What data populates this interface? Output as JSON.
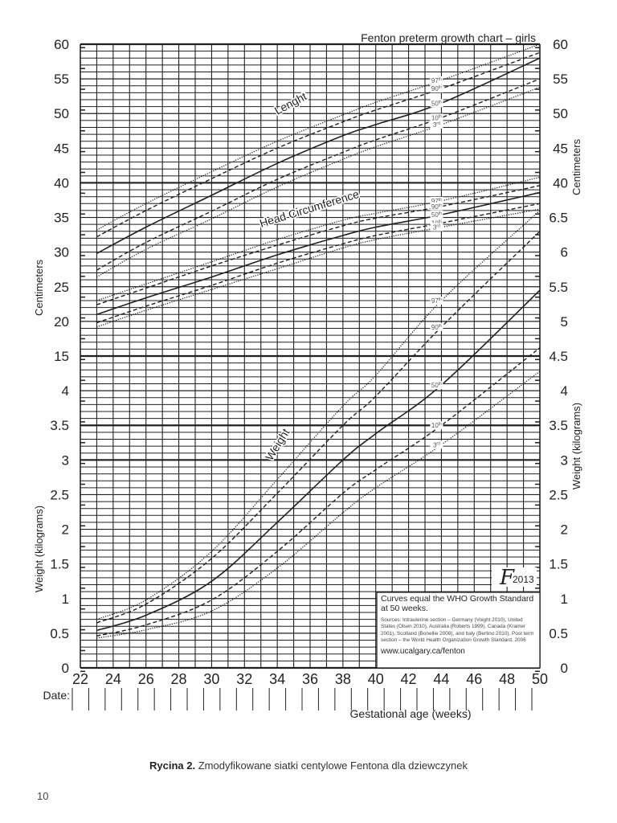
{
  "chart_title": "Fenton preterm growth chart – girls",
  "caption": {
    "label": "Rycina 2.",
    "text": "Zmodyfikowane siatki centylowe Fentona dla dziewczynek"
  },
  "page_number": "10",
  "axes": {
    "x_label": "Gestational age (weeks)",
    "x_ticks": [
      22,
      24,
      26,
      28,
      30,
      32,
      34,
      36,
      38,
      40,
      42,
      44,
      46,
      48,
      50
    ],
    "date_label": "Date:",
    "left_ticks": [
      "0",
      "0.5",
      "1",
      "1.5",
      "2",
      "2.5",
      "3",
      "3.5",
      "4",
      "15",
      "20",
      "25",
      "30",
      "35",
      "40",
      "45",
      "50",
      "55",
      "60"
    ],
    "right_ticks": [
      "0",
      "0.5",
      "1",
      "1.5",
      "2",
      "2.5",
      "3",
      "3.5",
      "4",
      "4.5",
      "5",
      "5.5",
      "6",
      "6.5",
      "40",
      "45",
      "50",
      "55",
      "60"
    ],
    "left_label_top": "Centimeters",
    "left_label_bottom": "Weight (kilograms)",
    "right_label_top": "Centimeters",
    "right_label_bottom": "Weight (kilograms)"
  },
  "curve_labels": {
    "length": "Lenght",
    "head": "Head Circumference",
    "weight": "Weight"
  },
  "percentile_labels": [
    "97th",
    "90th",
    "50th",
    "10th",
    "3rd"
  ],
  "info_box": {
    "heading": "Curves equal the WHO Growth Standard at 50 weeks.",
    "sources": "Sources: Intrauterine section – Germany (Voight 2010), United States (Olsen 2010), Australia (Roberts 1999), Canada (Kramer 2001), Scotland (Bonellie 2008), and Italy (Bertino 2010). Post term section – the World Health Organization Growth Standard, 2006",
    "url": "www.ucalgary.ca/fenton"
  },
  "logo": {
    "glyph": "F",
    "year": "2013"
  },
  "chart_data": {
    "type": "line",
    "title": "Fenton preterm growth chart – girls",
    "xlabel": "Gestational age (weeks)",
    "ylabel_left": "Centimeters / Weight (kilograms)",
    "ylabel_right": "Centimeters / Weight (kilograms)",
    "xlim": [
      22,
      50
    ],
    "grid": true,
    "x": [
      23,
      26,
      30,
      34,
      38,
      40,
      44,
      50
    ],
    "groups": [
      {
        "name": "Length",
        "unit": "cm",
        "series": [
          {
            "name": "97th",
            "style": "dotted",
            "values": [
              33.2,
              37.0,
              41.6,
              46.0,
              49.8,
              51.6,
              54.8,
              60.0
            ]
          },
          {
            "name": "90th",
            "style": "dashed",
            "values": [
              32.2,
              36.0,
              40.6,
              45.0,
              48.8,
              50.5,
              53.6,
              58.8
            ]
          },
          {
            "name": "50th",
            "style": "solid",
            "values": [
              29.8,
              33.6,
              38.2,
              42.8,
              46.8,
              48.4,
              51.5,
              58.0
            ]
          },
          {
            "name": "10th",
            "style": "dashed",
            "values": [
              27.4,
              31.4,
              35.9,
              40.5,
              44.4,
              46.2,
              49.4,
              55.0
            ]
          },
          {
            "name": "3rd",
            "style": "dotted",
            "values": [
              26.4,
              30.4,
              34.8,
              39.4,
              43.4,
              45.2,
              48.4,
              53.8
            ]
          }
        ]
      },
      {
        "name": "Head Circumference",
        "unit": "cm",
        "series": [
          {
            "name": "97th",
            "style": "dotted",
            "values": [
              23.0,
              25.4,
              28.6,
              31.8,
              34.6,
              35.6,
              37.4,
              40.8
            ]
          },
          {
            "name": "90th",
            "style": "dashed",
            "values": [
              22.4,
              24.8,
              28.0,
              31.0,
              33.8,
              34.9,
              36.6,
              39.6
            ]
          },
          {
            "name": "50th",
            "style": "solid",
            "values": [
              21.0,
              23.4,
              26.4,
              29.6,
              32.4,
              33.6,
              35.4,
              38.6
            ]
          },
          {
            "name": "10th",
            "style": "dashed",
            "values": [
              19.8,
              22.2,
              25.2,
              28.4,
              31.2,
              32.4,
              34.2,
              37.0
            ]
          },
          {
            "name": "3rd",
            "style": "dotted",
            "values": [
              19.2,
              21.6,
              24.6,
              27.6,
              30.6,
              31.8,
              33.6,
              36.2
            ]
          }
        ]
      },
      {
        "name": "Weight",
        "unit": "kg",
        "series": [
          {
            "name": "97th",
            "style": "dotted",
            "values": [
              0.7,
              0.98,
              1.68,
              2.72,
              3.78,
              4.22,
              5.3,
              6.6
            ]
          },
          {
            "name": "90th",
            "style": "dashed",
            "values": [
              0.65,
              0.92,
              1.58,
              2.52,
              3.5,
              3.92,
              4.92,
              6.3
            ]
          },
          {
            "name": "50th",
            "style": "solid",
            "values": [
              0.54,
              0.76,
              1.25,
              2.1,
              3.0,
              3.38,
              4.08,
              5.45
            ]
          },
          {
            "name": "10th",
            "style": "dashed",
            "values": [
              0.46,
              0.62,
              0.98,
              1.68,
              2.52,
              2.86,
              3.5,
              4.62
            ]
          },
          {
            "name": "3rd",
            "style": "dotted",
            "values": [
              0.43,
              0.55,
              0.82,
              1.44,
              2.24,
              2.6,
              3.22,
              4.28
            ]
          }
        ]
      }
    ],
    "annotations": [
      "Curves equal the WHO Growth Standard at 50 weeks.",
      "www.ucalgary.ca/fenton",
      "2013"
    ]
  }
}
